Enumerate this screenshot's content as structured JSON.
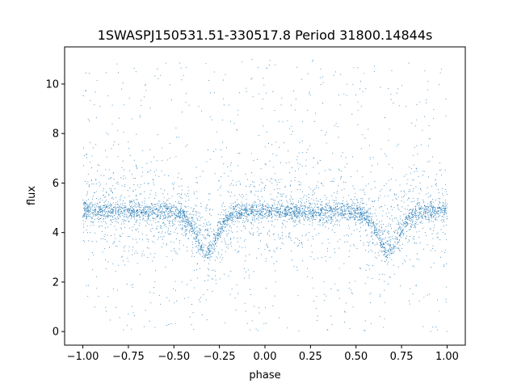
{
  "chart_data": {
    "type": "scatter",
    "title": "1SWASPJ150531.51-330517.8 Period 31800.14844s",
    "xlabel": "phase",
    "ylabel": "flux",
    "xlim": [
      -1.1,
      1.1
    ],
    "ylim": [
      -0.55,
      11.5
    ],
    "x_ticks": [
      -1.0,
      -0.75,
      -0.5,
      -0.25,
      0.0,
      0.25,
      0.5,
      0.75,
      1.0
    ],
    "x_tick_labels": [
      "−1.00",
      "−0.75",
      "−0.50",
      "−0.25",
      "0.00",
      "0.25",
      "0.50",
      "0.75",
      "1.00"
    ],
    "y_ticks": [
      0,
      2,
      4,
      6,
      8,
      10
    ],
    "y_tick_labels": [
      "0",
      "2",
      "4",
      "6",
      "8",
      "10"
    ],
    "grid": false,
    "legend": "none",
    "marker_color": "#1f77b4",
    "phase_range": [
      -1.0,
      1.0
    ],
    "flux_range": [
      0.0,
      11.0
    ],
    "baseline_flux": 4.85,
    "eclipses": [
      {
        "phase": -0.32,
        "min_flux": 3.2
      },
      {
        "phase": 0.68,
        "min_flux": 3.2
      }
    ],
    "secondary_branch_min_flux": 4.0
  }
}
